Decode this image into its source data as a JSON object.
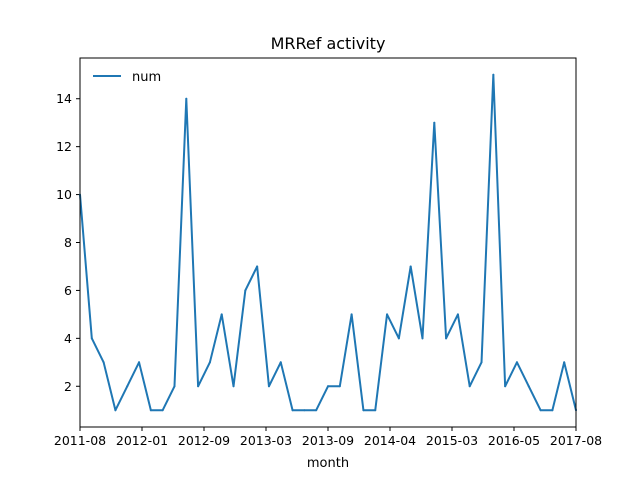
{
  "chart_data": {
    "type": "line",
    "title": "MRRef activity",
    "xlabel": "month",
    "ylabel": "",
    "x_tick_labels": [
      "2011-08",
      "2012-01",
      "2012-09",
      "2013-03",
      "2013-09",
      "2014-04",
      "2015-03",
      "2016-05",
      "2017-08"
    ],
    "y_ticks": [
      2,
      4,
      6,
      8,
      10,
      12,
      14
    ],
    "ylim": [
      0.3,
      15.7
    ],
    "grid": false,
    "legend": "top-left",
    "series": [
      {
        "name": "num",
        "color": "#1f77b4",
        "values": [
          10,
          4,
          3,
          1,
          2,
          3,
          1,
          1,
          2,
          14,
          2,
          3,
          5,
          2,
          6,
          7,
          2,
          3,
          1,
          1,
          1,
          2,
          2,
          5,
          1,
          1,
          5,
          4,
          7,
          4,
          13,
          4,
          5,
          2,
          3,
          15,
          2,
          3,
          2,
          1,
          1,
          3,
          1
        ]
      }
    ]
  }
}
